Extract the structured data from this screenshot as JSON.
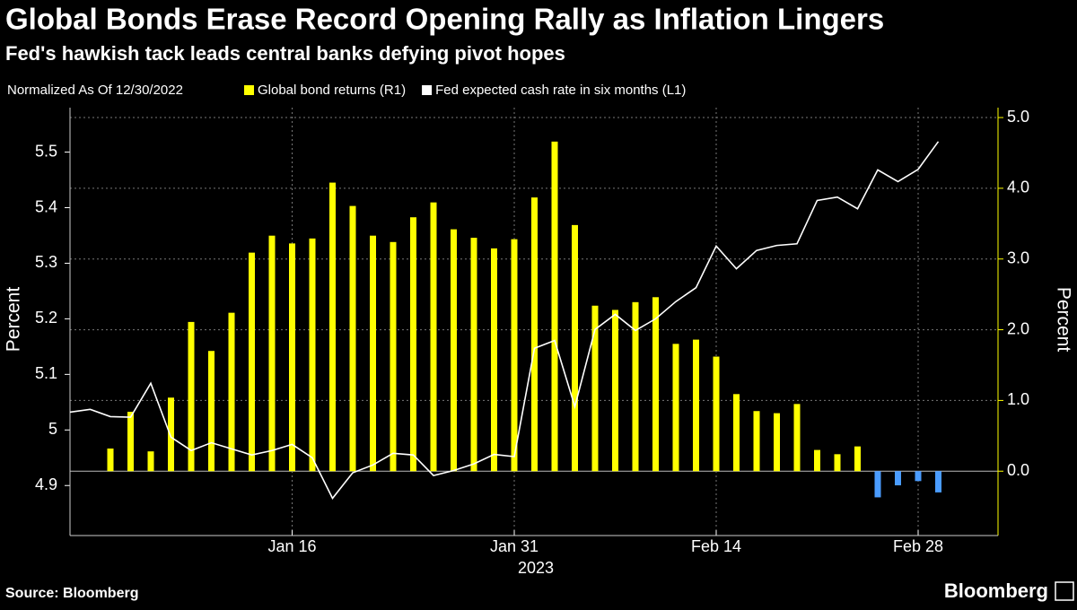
{
  "chart_data": {
    "type": "bar-line",
    "title": "Global Bonds Erase Record Opening Rally as Inflation Lingers",
    "subtitle": "Fed's hawkish tack leads central banks defying pivot hopes",
    "note": "Normalized As Of 12/30/2022",
    "source": "Source: Bloomberg",
    "brand": "Bloomberg",
    "x_label": "2023",
    "y_label": "Percent",
    "y2_label": "Percent",
    "categories": [
      null,
      null,
      null,
      null,
      null,
      null,
      null,
      null,
      null,
      null,
      null,
      "Jan 16",
      null,
      null,
      null,
      null,
      null,
      null,
      null,
      null,
      null,
      null,
      "Jan 31",
      null,
      null,
      null,
      null,
      null,
      null,
      null,
      null,
      null,
      "Feb 14",
      null,
      null,
      null,
      null,
      null,
      null,
      null,
      null,
      null,
      "Feb 28",
      null
    ],
    "series": [
      {
        "name": "Global bond returns (R1)",
        "type": "bar",
        "axis": "y2",
        "color": "#ffff00",
        "negative_color": "#4a9cff",
        "values": [
          null,
          null,
          0.32,
          0.84,
          0.28,
          1.04,
          2.11,
          1.7,
          2.24,
          3.09,
          3.33,
          3.22,
          3.29,
          4.08,
          3.75,
          3.33,
          3.24,
          3.59,
          3.8,
          3.42,
          3.3,
          3.15,
          3.28,
          3.87,
          4.66,
          3.48,
          2.34,
          2.28,
          2.39,
          2.46,
          1.8,
          1.86,
          1.62,
          1.09,
          0.85,
          0.82,
          0.95,
          0.3,
          0.24,
          0.35,
          -0.37,
          -0.2,
          -0.14,
          -0.3
        ]
      },
      {
        "name": "Fed expected cash rate in six months (L1)",
        "type": "line",
        "axis": "y",
        "color": "#ffffff",
        "values": [
          5.032,
          5.037,
          5.024,
          5.023,
          5.084,
          4.987,
          4.963,
          4.977,
          4.966,
          4.955,
          4.963,
          4.974,
          4.95,
          4.877,
          4.923,
          4.937,
          4.958,
          4.955,
          4.918,
          4.927,
          4.939,
          4.956,
          4.952,
          5.147,
          5.161,
          5.042,
          5.181,
          5.208,
          5.179,
          5.2,
          5.231,
          5.256,
          5.331,
          5.29,
          5.323,
          5.332,
          5.335,
          5.413,
          5.419,
          5.398,
          5.468,
          5.447,
          5.469,
          5.519
        ]
      }
    ],
    "ylim": [
      4.81,
      5.58
    ],
    "yticks": [
      4.9,
      5.0,
      5.1,
      5.2,
      5.3,
      5.4,
      5.5
    ],
    "y2lim": [
      -0.91,
      5.14
    ],
    "y2ticks": [
      {
        "value": 0,
        "label": "0.0"
      },
      {
        "value": 1,
        "label": "1.0"
      },
      {
        "value": 2,
        "label": "2.0"
      },
      {
        "value": 3,
        "label": "3.0"
      },
      {
        "value": 4,
        "label": "4.0"
      },
      {
        "value": 5,
        "label": "5.0"
      }
    ],
    "grid": true
  }
}
